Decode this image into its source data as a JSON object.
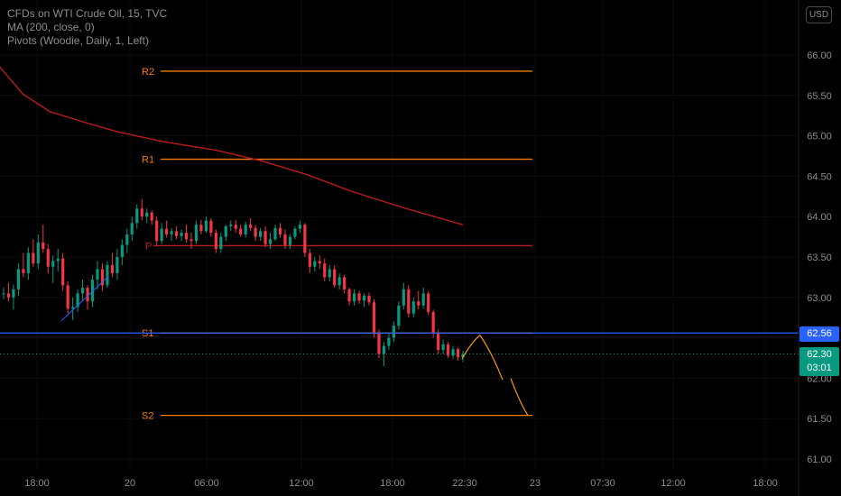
{
  "legend": {
    "title": "CFDs on WTI Crude Oil, 15, TVC",
    "ma": "MA (200, close, 0)",
    "pivots": "Pivots (Woodie, Daily, 1, Left)"
  },
  "currency_button": "USD",
  "price_tags": {
    "blue_value": "62.56",
    "last_value": "62.30",
    "countdown": "03:01"
  },
  "colors": {
    "background": "#000000",
    "up": "#089981",
    "down": "#f23645",
    "ma": "#b71c1c",
    "pivot_levels": "#f57c00",
    "pivot_p": "#b71c1c",
    "horizontal_line": "#2962ff",
    "projection": "#ff9800",
    "trendline": "#2962ff",
    "axis_text": "#8d8d8d"
  },
  "chart_data": {
    "type": "candlestick",
    "title": "CFDs on WTI Crude Oil, 15, TVC",
    "ylim": [
      60.9,
      66.6
    ],
    "y_ticks": [
      "61.00",
      "61.50",
      "62.00",
      "62.50",
      "63.00",
      "63.50",
      "64.00",
      "64.50",
      "65.00",
      "65.50",
      "66.00"
    ],
    "x_ticks": [
      "18:00",
      "20",
      "06:00",
      "12:00",
      "18:00",
      "22:30",
      "23",
      "07:30",
      "12:00",
      "18:00"
    ],
    "pivots": [
      {
        "label": "R2",
        "value": 65.8
      },
      {
        "label": "R1",
        "value": 64.71
      },
      {
        "label": "P",
        "value": 63.64
      },
      {
        "label": "S1",
        "value": 62.56
      },
      {
        "label": "S2",
        "value": 61.54
      }
    ],
    "horizontal_line": 62.56,
    "last_price": 62.3,
    "ma_200": [
      65.85,
      65.52,
      65.3,
      65.18,
      65.05,
      64.93,
      64.82,
      64.69,
      64.52,
      64.31,
      64.1,
      63.9
    ],
    "projection": [
      62.24,
      62.47,
      62.53,
      62.32,
      61.98,
      61.54
    ],
    "trendline": [
      62.71,
      63.26
    ],
    "candles": [
      [
        63.05,
        63.12,
        62.98,
        63.05
      ],
      [
        63.05,
        63.18,
        62.95,
        63.0
      ],
      [
        63.0,
        63.16,
        62.85,
        63.1
      ],
      [
        63.1,
        63.42,
        63.02,
        63.35
      ],
      [
        63.35,
        63.55,
        63.25,
        63.3
      ],
      [
        63.3,
        63.62,
        63.22,
        63.55
      ],
      [
        63.55,
        63.72,
        63.38,
        63.42
      ],
      [
        63.42,
        63.78,
        63.35,
        63.68
      ],
      [
        63.68,
        63.9,
        63.55,
        63.6
      ],
      [
        63.6,
        63.66,
        63.3,
        63.38
      ],
      [
        63.38,
        63.52,
        63.18,
        63.45
      ],
      [
        63.45,
        63.6,
        63.32,
        63.48
      ],
      [
        63.48,
        63.55,
        63.08,
        63.15
      ],
      [
        63.15,
        63.2,
        62.8,
        62.86
      ],
      [
        62.86,
        63.0,
        62.72,
        62.88
      ],
      [
        62.88,
        63.1,
        62.82,
        63.05
      ],
      [
        63.05,
        63.22,
        62.95,
        63.12
      ],
      [
        63.12,
        63.15,
        62.85,
        62.95
      ],
      [
        62.95,
        63.28,
        62.88,
        63.22
      ],
      [
        63.22,
        63.45,
        63.1,
        63.35
      ],
      [
        63.35,
        63.42,
        63.08,
        63.15
      ],
      [
        63.15,
        63.45,
        63.12,
        63.4
      ],
      [
        63.4,
        63.55,
        63.25,
        63.3
      ],
      [
        63.3,
        63.6,
        63.22,
        63.5
      ],
      [
        63.5,
        63.72,
        63.4,
        63.65
      ],
      [
        63.65,
        63.85,
        63.55,
        63.78
      ],
      [
        63.78,
        64.0,
        63.7,
        63.92
      ],
      [
        63.92,
        64.15,
        63.85,
        64.1
      ],
      [
        64.1,
        64.22,
        63.95,
        64.0
      ],
      [
        64.0,
        64.1,
        63.92,
        64.05
      ],
      [
        64.05,
        64.08,
        63.9,
        63.95
      ],
      [
        63.95,
        64.0,
        63.65,
        63.7
      ],
      [
        63.7,
        63.92,
        63.66,
        63.85
      ],
      [
        63.85,
        63.95,
        63.74,
        63.78
      ],
      [
        63.78,
        63.86,
        63.7,
        63.82
      ],
      [
        63.82,
        63.88,
        63.72,
        63.76
      ],
      [
        63.76,
        63.84,
        63.7,
        63.8
      ],
      [
        63.8,
        63.9,
        63.68,
        63.72
      ],
      [
        63.72,
        63.8,
        63.6,
        63.7
      ],
      [
        63.7,
        63.95,
        63.66,
        63.9
      ],
      [
        63.9,
        63.96,
        63.78,
        63.82
      ],
      [
        63.82,
        64.0,
        63.8,
        63.95
      ],
      [
        63.95,
        63.98,
        63.75,
        63.8
      ],
      [
        63.8,
        63.84,
        63.55,
        63.6
      ],
      [
        63.6,
        63.8,
        63.55,
        63.75
      ],
      [
        63.75,
        63.9,
        63.7,
        63.88
      ],
      [
        63.88,
        63.95,
        63.82,
        63.9
      ],
      [
        63.9,
        63.96,
        63.8,
        63.85
      ],
      [
        63.85,
        63.9,
        63.75,
        63.78
      ],
      [
        63.78,
        63.94,
        63.74,
        63.9
      ],
      [
        63.9,
        63.98,
        63.82,
        63.86
      ],
      [
        63.86,
        63.9,
        63.7,
        63.75
      ],
      [
        63.75,
        63.86,
        63.7,
        63.82
      ],
      [
        63.82,
        63.88,
        63.62,
        63.66
      ],
      [
        63.66,
        63.8,
        63.6,
        63.72
      ],
      [
        63.72,
        63.9,
        63.7,
        63.86
      ],
      [
        63.86,
        63.92,
        63.74,
        63.78
      ],
      [
        63.78,
        63.84,
        63.6,
        63.65
      ],
      [
        63.65,
        63.78,
        63.6,
        63.75
      ],
      [
        63.75,
        63.88,
        63.72,
        63.85
      ],
      [
        63.85,
        63.95,
        63.8,
        63.9
      ],
      [
        63.9,
        63.92,
        63.5,
        63.55
      ],
      [
        63.55,
        63.6,
        63.3,
        63.38
      ],
      [
        63.38,
        63.5,
        63.32,
        63.45
      ],
      [
        63.45,
        63.52,
        63.35,
        63.42
      ],
      [
        63.42,
        63.48,
        63.2,
        63.25
      ],
      [
        63.25,
        63.4,
        63.2,
        63.35
      ],
      [
        63.35,
        63.4,
        63.12,
        63.15
      ],
      [
        63.15,
        63.3,
        63.1,
        63.25
      ],
      [
        63.25,
        63.28,
        63.05,
        63.1
      ],
      [
        63.1,
        63.12,
        62.9,
        62.95
      ],
      [
        62.95,
        63.1,
        62.9,
        63.05
      ],
      [
        63.05,
        63.08,
        62.92,
        62.96
      ],
      [
        62.96,
        63.05,
        62.88,
        63.02
      ],
      [
        63.02,
        63.06,
        62.9,
        62.94
      ],
      [
        62.94,
        62.98,
        62.5,
        62.55
      ],
      [
        62.55,
        62.6,
        62.25,
        62.3
      ],
      [
        62.3,
        62.45,
        62.15,
        62.4
      ],
      [
        62.4,
        62.55,
        62.35,
        62.5
      ],
      [
        62.5,
        62.7,
        62.45,
        62.65
      ],
      [
        62.65,
        62.95,
        62.6,
        62.9
      ],
      [
        62.9,
        63.18,
        62.85,
        63.1
      ],
      [
        63.1,
        63.15,
        62.75,
        62.8
      ],
      [
        62.8,
        63.0,
        62.75,
        62.95
      ],
      [
        62.95,
        63.08,
        62.85,
        62.9
      ],
      [
        62.9,
        63.12,
        62.86,
        63.05
      ],
      [
        63.05,
        63.08,
        62.78,
        62.82
      ],
      [
        62.82,
        62.85,
        62.5,
        62.55
      ],
      [
        62.55,
        62.6,
        62.3,
        62.35
      ],
      [
        62.35,
        62.48,
        62.3,
        62.42
      ],
      [
        62.42,
        62.45,
        62.25,
        62.28
      ],
      [
        62.28,
        62.4,
        62.24,
        62.36
      ],
      [
        62.36,
        62.38,
        62.22,
        62.26
      ],
      [
        62.26,
        62.34,
        62.2,
        62.3
      ]
    ]
  }
}
